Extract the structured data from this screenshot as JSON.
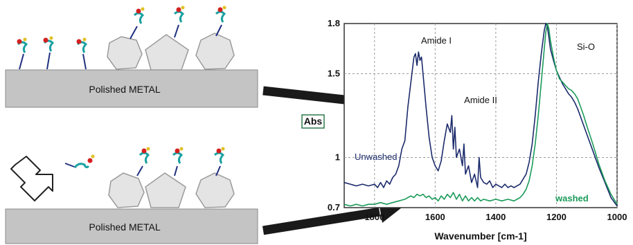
{
  "plates": {
    "top_label": "Polished METAL",
    "bottom_label": "Polished METAL"
  },
  "colors": {
    "plate_fill": "#c4c4c4",
    "particle_fill": "#e4e4e4",
    "unwashed": "#1b2a6b",
    "washed": "#1a9a5a",
    "arrow": "#1a1a1a",
    "abs_box": "#2f7a4a"
  },
  "chart_data": {
    "type": "line",
    "xlabel": "Wavenumber [cm-1]",
    "ylabel": "Abs",
    "xlim": [
      1900,
      1000
    ],
    "ylim": [
      0.7,
      1.8
    ],
    "x_ticks": [
      "1800",
      "1600",
      "1400",
      "1200",
      "1000"
    ],
    "y_ticks": [
      "0.7",
      "1",
      "1.5",
      "1.8"
    ],
    "x_reversed": true,
    "grid": true,
    "annotations": [
      "Amide I",
      "Amide II",
      "Si-O"
    ],
    "series": [
      {
        "name": "Unwashed",
        "x": [
          1900,
          1880,
          1860,
          1840,
          1820,
          1800,
          1790,
          1780,
          1770,
          1760,
          1750,
          1740,
          1730,
          1720,
          1710,
          1700,
          1690,
          1680,
          1670,
          1665,
          1660,
          1655,
          1650,
          1645,
          1640,
          1630,
          1620,
          1610,
          1600,
          1590,
          1580,
          1570,
          1560,
          1550,
          1545,
          1540,
          1535,
          1530,
          1520,
          1510,
          1505,
          1500,
          1490,
          1480,
          1470,
          1460,
          1455,
          1450,
          1440,
          1430,
          1420,
          1410,
          1400,
          1390,
          1380,
          1370,
          1360,
          1350,
          1340,
          1320,
          1300,
          1290,
          1280,
          1270,
          1260,
          1250,
          1240,
          1235,
          1230,
          1225,
          1220,
          1210,
          1200,
          1190,
          1180,
          1170,
          1160,
          1150,
          1140,
          1130,
          1120,
          1100,
          1080,
          1060,
          1040,
          1020,
          1000
        ],
        "y": [
          0.85,
          0.84,
          0.83,
          0.84,
          0.83,
          0.84,
          0.82,
          0.85,
          0.82,
          0.86,
          0.84,
          0.88,
          0.9,
          0.95,
          1.05,
          1.1,
          1.3,
          1.45,
          1.6,
          1.62,
          1.55,
          1.63,
          1.58,
          1.6,
          1.5,
          1.3,
          1.12,
          1.0,
          0.95,
          0.92,
          0.98,
          1.1,
          1.2,
          1.15,
          1.25,
          1.05,
          1.18,
          1.0,
          1.05,
          0.95,
          1.08,
          0.9,
          0.95,
          0.85,
          0.9,
          0.82,
          1.0,
          0.88,
          0.85,
          0.84,
          0.86,
          0.82,
          0.84,
          0.83,
          0.82,
          0.84,
          0.82,
          0.83,
          0.82,
          0.84,
          0.9,
          0.97,
          1.08,
          1.25,
          1.45,
          1.62,
          1.76,
          1.8,
          1.78,
          1.72,
          1.65,
          1.58,
          1.52,
          1.48,
          1.44,
          1.41,
          1.38,
          1.36,
          1.33,
          1.29,
          1.24,
          1.14,
          1.04,
          0.94,
          0.85,
          0.76,
          0.71
        ]
      },
      {
        "name": "washed",
        "x": [
          1900,
          1880,
          1860,
          1840,
          1820,
          1800,
          1780,
          1760,
          1740,
          1720,
          1700,
          1690,
          1680,
          1670,
          1660,
          1650,
          1640,
          1630,
          1620,
          1610,
          1600,
          1590,
          1580,
          1570,
          1560,
          1550,
          1540,
          1530,
          1520,
          1510,
          1500,
          1490,
          1480,
          1470,
          1460,
          1450,
          1440,
          1420,
          1400,
          1380,
          1360,
          1340,
          1320,
          1310,
          1300,
          1290,
          1280,
          1270,
          1260,
          1250,
          1240,
          1235,
          1230,
          1225,
          1220,
          1210,
          1200,
          1190,
          1180,
          1170,
          1160,
          1150,
          1140,
          1130,
          1120,
          1110,
          1100,
          1080,
          1060,
          1040,
          1020,
          1000
        ],
        "y": [
          0.72,
          0.71,
          0.72,
          0.71,
          0.72,
          0.72,
          0.73,
          0.72,
          0.73,
          0.74,
          0.75,
          0.76,
          0.77,
          0.76,
          0.78,
          0.77,
          0.78,
          0.76,
          0.77,
          0.75,
          0.76,
          0.74,
          0.77,
          0.75,
          0.78,
          0.76,
          0.79,
          0.75,
          0.78,
          0.74,
          0.77,
          0.74,
          0.76,
          0.74,
          0.76,
          0.74,
          0.75,
          0.74,
          0.75,
          0.74,
          0.75,
          0.74,
          0.76,
          0.78,
          0.81,
          0.86,
          0.95,
          1.08,
          1.25,
          1.45,
          1.65,
          1.75,
          1.8,
          1.77,
          1.7,
          1.6,
          1.52,
          1.47,
          1.45,
          1.43,
          1.41,
          1.4,
          1.38,
          1.35,
          1.3,
          1.25,
          1.19,
          1.08,
          0.96,
          0.86,
          0.78,
          0.72
        ]
      }
    ]
  }
}
